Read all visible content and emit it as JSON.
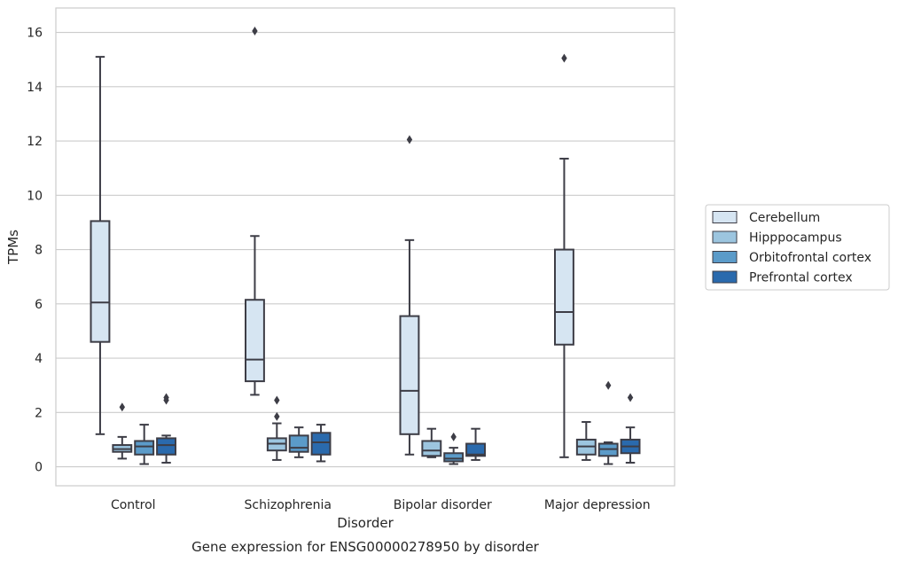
{
  "chart_data": {
    "type": "boxplot",
    "title": "",
    "caption": "Gene expression for ENSG00000278950 by disorder",
    "xlabel": "Disorder",
    "ylabel": "TPMs",
    "ylim": [
      -0.7,
      16.9
    ],
    "yticks": [
      0,
      2,
      4,
      6,
      8,
      10,
      12,
      14,
      16
    ],
    "grid": "horizontal",
    "legend_position": "right",
    "categories": [
      "Control",
      "Schizophrenia",
      "Bipolar disorder",
      "Major depression"
    ],
    "series": [
      {
        "name": "Cerebellum",
        "color": "#d6e5f2",
        "boxes": [
          {
            "whisker_low": 1.2,
            "q1": 4.6,
            "median": 6.05,
            "q3": 9.05,
            "whisker_high": 15.1,
            "outliers": []
          },
          {
            "whisker_low": 2.65,
            "q1": 3.15,
            "median": 3.95,
            "q3": 6.15,
            "whisker_high": 8.5,
            "outliers": [
              16.05
            ]
          },
          {
            "whisker_low": 0.45,
            "q1": 1.2,
            "median": 2.8,
            "q3": 5.55,
            "whisker_high": 8.35,
            "outliers": [
              12.05
            ]
          },
          {
            "whisker_low": 0.35,
            "q1": 4.5,
            "median": 5.7,
            "q3": 8.0,
            "whisker_high": 11.35,
            "outliers": [
              15.05
            ]
          }
        ]
      },
      {
        "name": "Hipppocampus",
        "color": "#9cc5df",
        "boxes": [
          {
            "whisker_low": 0.3,
            "q1": 0.55,
            "median": 0.65,
            "q3": 0.8,
            "whisker_high": 1.1,
            "outliers": [
              2.2
            ]
          },
          {
            "whisker_low": 0.25,
            "q1": 0.6,
            "median": 0.85,
            "q3": 1.05,
            "whisker_high": 1.6,
            "outliers": [
              1.85,
              2.45
            ]
          },
          {
            "whisker_low": 0.35,
            "q1": 0.4,
            "median": 0.6,
            "q3": 0.95,
            "whisker_high": 1.4,
            "outliers": []
          },
          {
            "whisker_low": 0.25,
            "q1": 0.45,
            "median": 0.75,
            "q3": 1.0,
            "whisker_high": 1.65,
            "outliers": []
          }
        ]
      },
      {
        "name": "Orbitofrontal cortex",
        "color": "#5b9bc9",
        "boxes": [
          {
            "whisker_low": 0.1,
            "q1": 0.45,
            "median": 0.75,
            "q3": 0.95,
            "whisker_high": 1.55,
            "outliers": []
          },
          {
            "whisker_low": 0.35,
            "q1": 0.55,
            "median": 0.7,
            "q3": 1.15,
            "whisker_high": 1.45,
            "outliers": []
          },
          {
            "whisker_low": 0.1,
            "q1": 0.2,
            "median": 0.3,
            "q3": 0.5,
            "whisker_high": 0.7,
            "outliers": [
              1.1
            ]
          },
          {
            "whisker_low": 0.1,
            "q1": 0.4,
            "median": 0.65,
            "q3": 0.85,
            "whisker_high": 0.9,
            "outliers": [
              3.0
            ]
          }
        ]
      },
      {
        "name": "Prefrontal cortex",
        "color": "#2a6aad",
        "boxes": [
          {
            "whisker_low": 0.15,
            "q1": 0.45,
            "median": 0.8,
            "q3": 1.05,
            "whisker_high": 1.15,
            "outliers": [
              2.45,
              2.55
            ]
          },
          {
            "whisker_low": 0.2,
            "q1": 0.45,
            "median": 0.9,
            "q3": 1.25,
            "whisker_high": 1.55,
            "outliers": []
          },
          {
            "whisker_low": 0.25,
            "q1": 0.4,
            "median": 0.45,
            "q3": 0.85,
            "whisker_high": 1.4,
            "outliers": []
          },
          {
            "whisker_low": 0.15,
            "q1": 0.5,
            "median": 0.75,
            "q3": 1.0,
            "whisker_high": 1.45,
            "outliers": [
              2.55
            ]
          }
        ]
      }
    ]
  }
}
